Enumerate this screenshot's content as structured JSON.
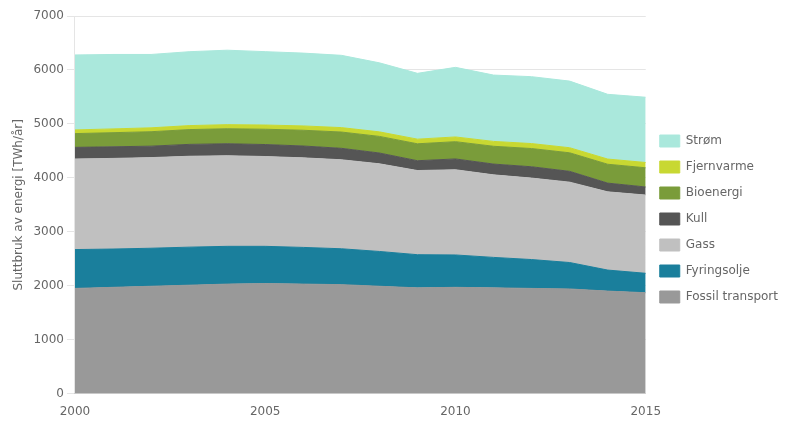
{
  "chart_data": {
    "type": "area",
    "stacked": true,
    "ylabel": "Sluttbruk av energi [TWh/år]",
    "x": [
      2000,
      2001,
      2002,
      2003,
      2004,
      2005,
      2006,
      2007,
      2008,
      2009,
      2010,
      2011,
      2012,
      2013,
      2014,
      2015
    ],
    "xlim": [
      2000,
      2015
    ],
    "xticks": [
      2000,
      2005,
      2010,
      2015
    ],
    "ylim": [
      0,
      7000
    ],
    "yticks": [
      0,
      1000,
      2000,
      3000,
      4000,
      5000,
      6000,
      7000
    ],
    "grid": "y",
    "legend": "right",
    "series": [
      {
        "name": "Fossil transport",
        "color": "#999999",
        "values": [
          1950,
          1970,
          1990,
          2010,
          2030,
          2040,
          2030,
          2020,
          1990,
          1960,
          1970,
          1960,
          1950,
          1940,
          1900,
          1870
        ]
      },
      {
        "name": "Fyringsolje",
        "color": "#1a7f9c",
        "values": [
          720,
          710,
          705,
          705,
          700,
          690,
          680,
          665,
          645,
          615,
          600,
          565,
          535,
          490,
          390,
          360
        ]
      },
      {
        "name": "Gass",
        "color": "#c0c0c0",
        "values": [
          1680,
          1680,
          1680,
          1685,
          1680,
          1665,
          1660,
          1650,
          1625,
          1560,
          1580,
          1530,
          1510,
          1490,
          1450,
          1450
        ]
      },
      {
        "name": "Kull",
        "color": "#555555",
        "values": [
          215,
          215,
          212,
          220,
          222,
          222,
          220,
          212,
          200,
          182,
          200,
          200,
          210,
          200,
          162,
          150
        ]
      },
      {
        "name": "Bioenergi",
        "color": "#7a9c3a",
        "values": [
          255,
          262,
          268,
          274,
          278,
          284,
          292,
          302,
          308,
          314,
          320,
          330,
          338,
          344,
          350,
          356
        ]
      },
      {
        "name": "Fjernvarme",
        "color": "#c8d832",
        "values": [
          68,
          70,
          72,
          74,
          76,
          78,
          80,
          82,
          84,
          86,
          88,
          90,
          92,
          94,
          96,
          98
        ]
      },
      {
        "name": "Strøm",
        "color": "#aae8dc",
        "values": [
          1390,
          1380,
          1360,
          1370,
          1380,
          1360,
          1350,
          1340,
          1280,
          1220,
          1290,
          1230,
          1240,
          1235,
          1200,
          1210
        ]
      }
    ]
  }
}
